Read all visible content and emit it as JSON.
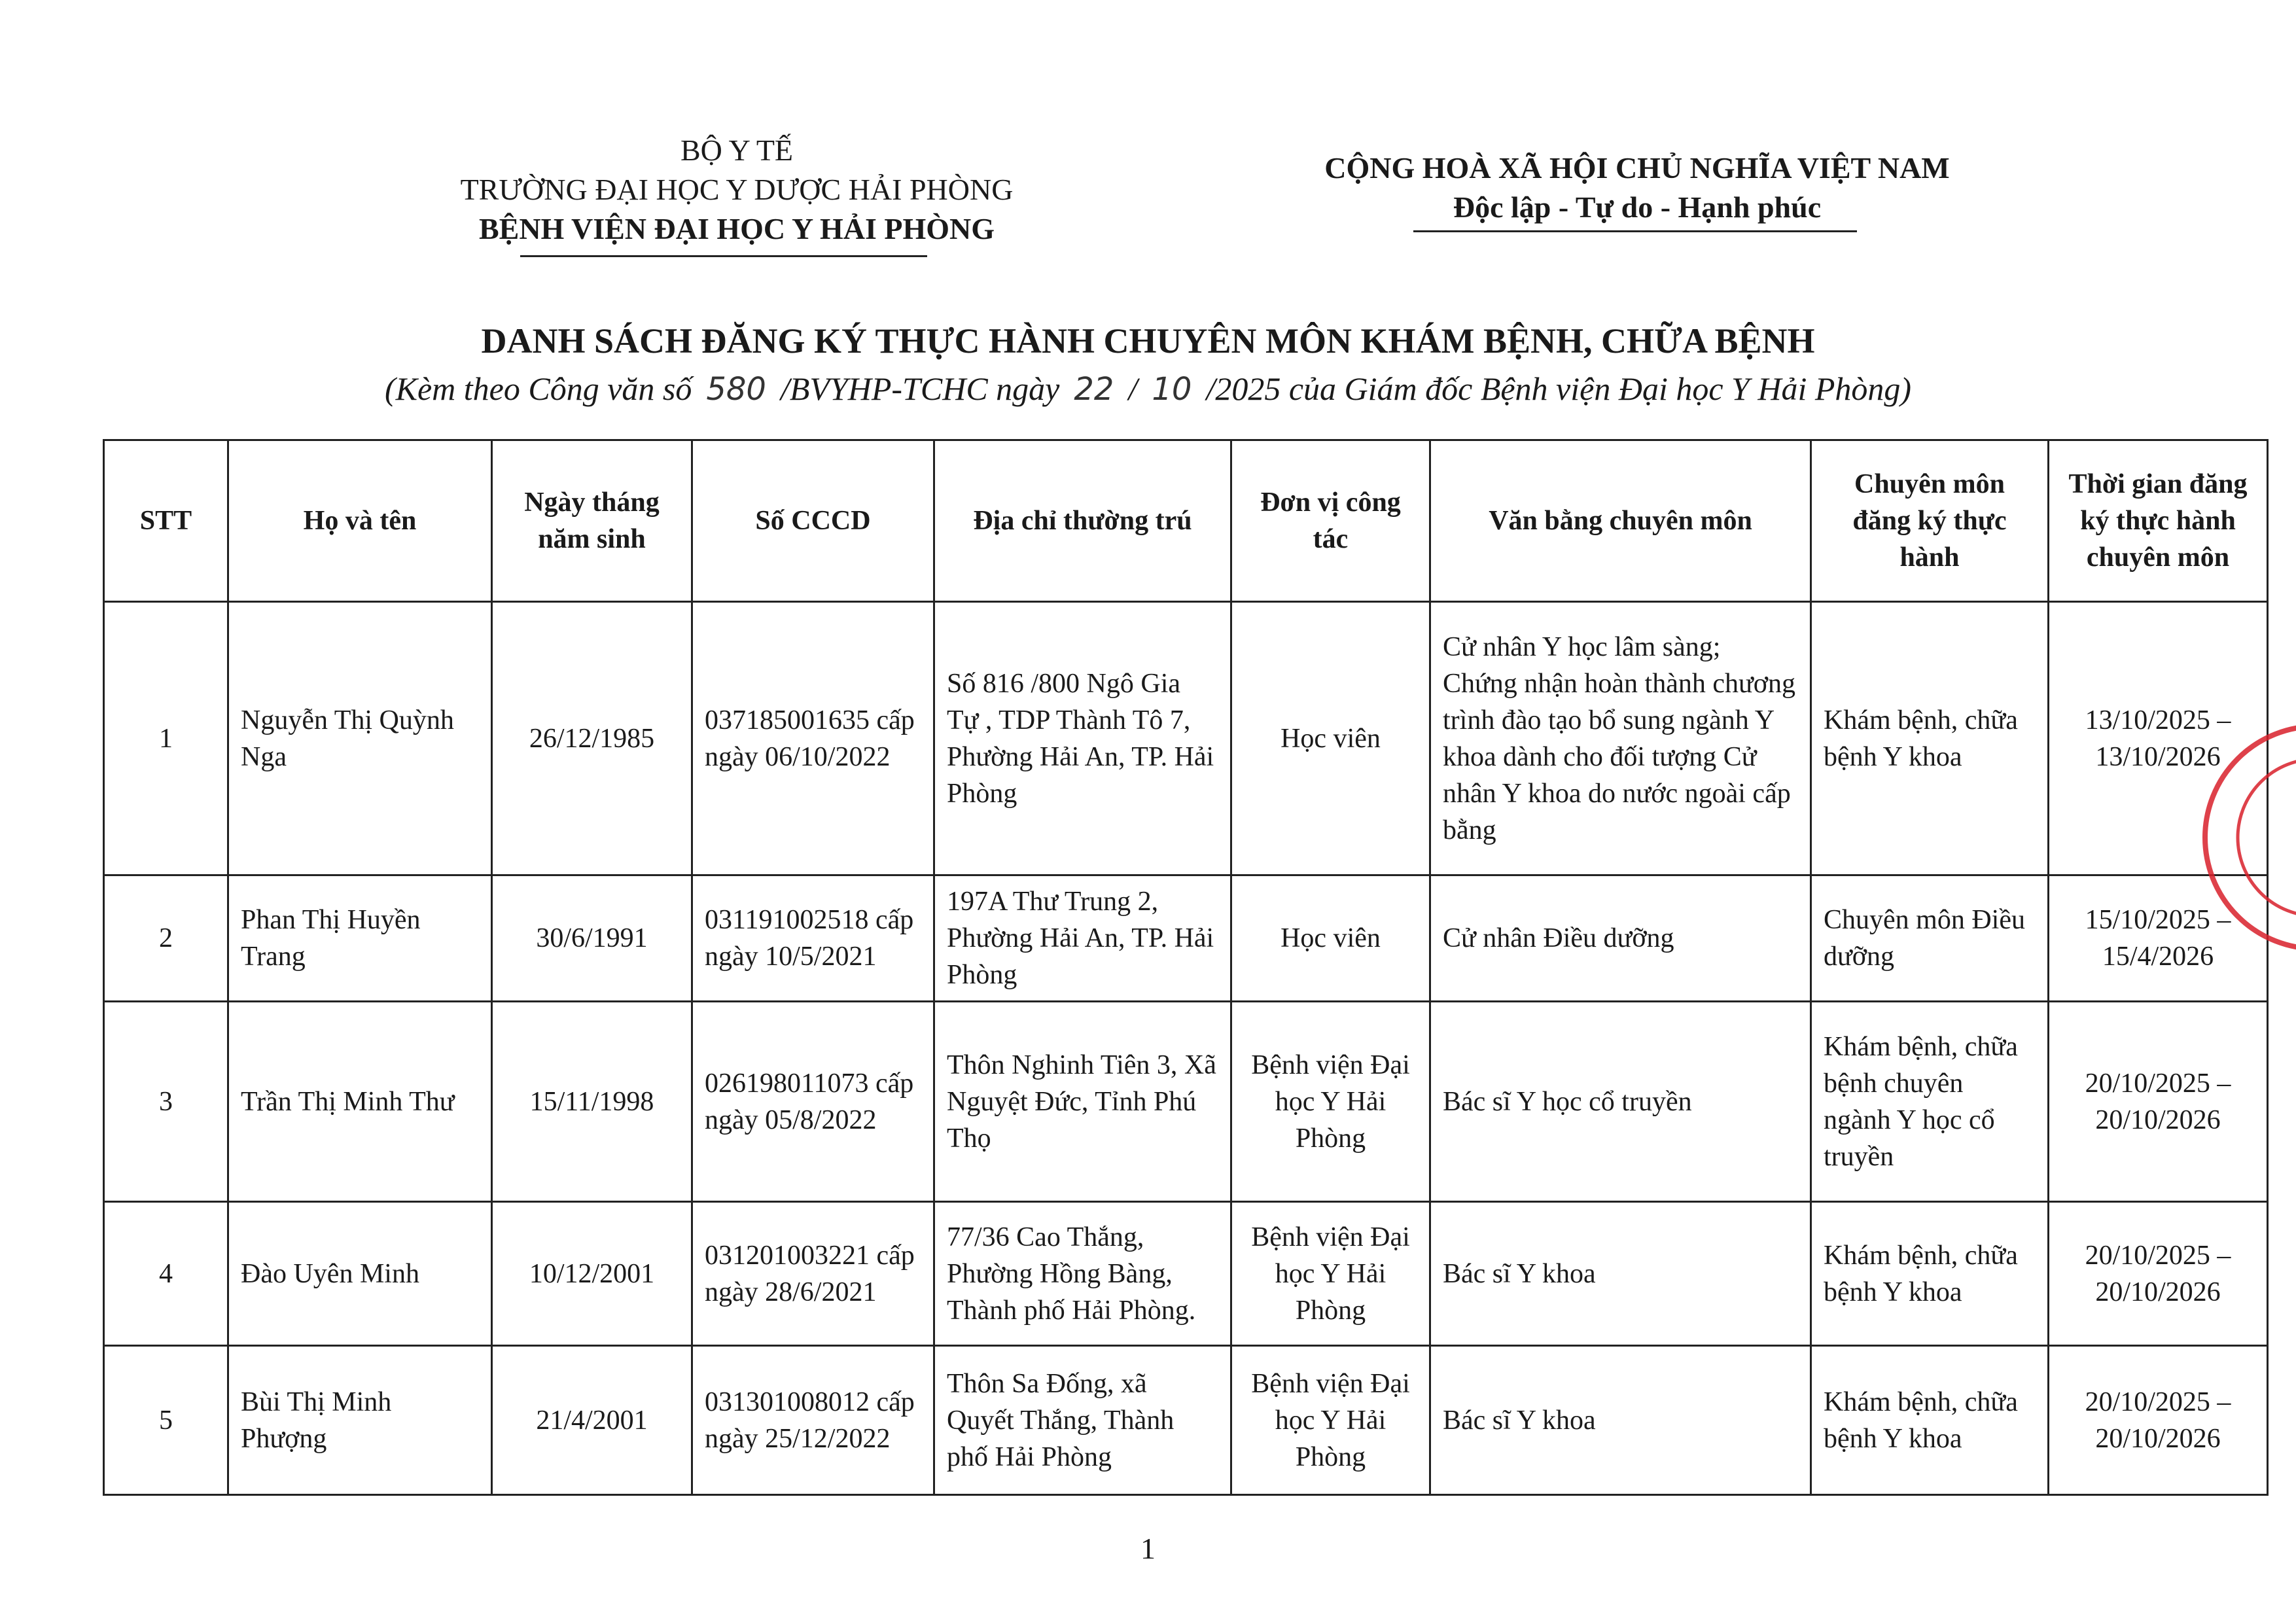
{
  "header": {
    "left": [
      "BỘ Y TẾ",
      "TRƯỜNG ĐẠI HỌC Y DƯỢC HẢI PHÒNG",
      "BỆNH VIỆN ĐẠI HỌC Y HẢI PHÒNG"
    ],
    "right": [
      "CỘNG HOÀ XÃ HỘI CHỦ NGHĨA VIỆT NAM",
      "Độc lập - Tự do - Hạnh phúc"
    ]
  },
  "title": "DANH SÁCH ĐĂNG KÝ THỰC HÀNH CHUYÊN MÔN KHÁM BỆNH, CHỮA BỆNH",
  "subtitle": {
    "prefix": "(Kèm theo Công văn số",
    "number": "580",
    "middle": "/BVYHP-TCHC ngày",
    "day": "22",
    "separator": "/",
    "month": "10",
    "suffix": "/2025 của Giám đốc Bệnh viện Đại học Y Hải Phòng)"
  },
  "table": {
    "columns": [
      "STT",
      "Họ và tên",
      "Ngày tháng năm sinh",
      "Số CCCD",
      "Địa chỉ thường trú",
      "Đơn vị công tác",
      "Văn bằng chuyên môn",
      "Chuyên môn đăng ký thực hành",
      "Thời gian đăng ký thực hành chuyên môn"
    ],
    "rows": [
      [
        "1",
        "Nguyễn Thị Quỳnh Nga",
        "26/12/1985",
        "037185001635 cấp ngày 06/10/2022",
        "Số 816 /800 Ngô Gia Tự , TDP Thành Tô 7, Phường Hải An, TP. Hải Phòng",
        "Học viên",
        "Cử nhân Y học lâm sàng; Chứng nhận hoàn thành chương trình đào tạo bổ sung ngành Y khoa dành cho đối tượng Cử nhân Y khoa do nước ngoài cấp bằng",
        "Khám bệnh, chữa bệnh Y khoa",
        "13/10/2025 – 13/10/2026"
      ],
      [
        "2",
        "Phan Thị Huyền Trang",
        "30/6/1991",
        "031191002518 cấp ngày 10/5/2021",
        "197A Thư Trung 2, Phường Hải An, TP. Hải Phòng",
        "Học viên",
        "Cử nhân Điều dưỡng",
        "Chuyên môn Điều dưỡng",
        "15/10/2025 – 15/4/2026"
      ],
      [
        "3",
        "Trần Thị Minh Thư",
        "15/11/1998",
        "026198011073 cấp ngày 05/8/2022",
        "Thôn Nghinh Tiên 3, Xã Nguyệt Đức, Tỉnh Phú Thọ",
        "Bệnh viện Đại học Y Hải Phòng",
        "Bác sĩ Y học cổ truyền",
        "Khám bệnh, chữa bệnh chuyên ngành Y học cổ truyền",
        "20/10/2025 – 20/10/2026"
      ],
      [
        "4",
        "Đào Uyên Minh",
        "10/12/2001",
        "031201003221 cấp ngày 28/6/2021",
        "77/36 Cao Thắng, Phường Hồng Bàng, Thành phố Hải Phòng.",
        "Bệnh viện Đại học Y Hải Phòng",
        "Bác sĩ Y khoa",
        "Khám bệnh, chữa bệnh Y khoa",
        "20/10/2025 – 20/10/2026"
      ],
      [
        "5",
        "Bùi Thị Minh Phượng",
        "21/4/2001",
        "031301008012 cấp ngày 25/12/2022",
        "Thôn Sa Đống, xã Quyết Thắng, Thành phố Hải Phòng",
        "Bệnh viện Đại học Y Hải Phòng",
        "Bác sĩ Y khoa",
        "Khám bệnh, chữa bệnh Y khoa",
        "20/10/2025 – 20/10/2026"
      ]
    ]
  },
  "page_number": 1
}
